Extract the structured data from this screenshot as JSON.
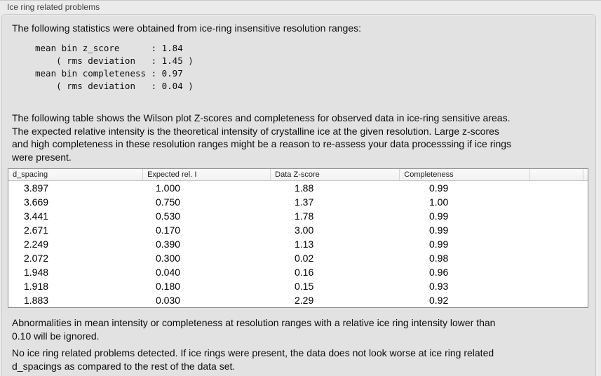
{
  "panel": {
    "title": "Ice ring related problems"
  },
  "intro": {
    "text": "The following statistics were obtained from ice-ring insensitive resolution ranges:",
    "stats_block": "mean bin z_score      : 1.84\n    ( rms deviation   : 1.45 )\nmean bin completeness : 0.97\n    ( rms deviation   : 0.04 )"
  },
  "table_description": "The following table shows the Wilson plot Z-scores and completeness for observed data in ice-ring sensitive areas.\nThe expected relative intensity is the theoretical intensity of crystalline ice at the given resolution. Large z-scores\nand high completeness in these resolution ranges might be a reason to re-assess your data processsing if ice rings\nwere present.",
  "table": {
    "columns": [
      "d_spacing",
      "Expected rel. I",
      "Data Z-score",
      "Completeness"
    ],
    "rows": [
      [
        "3.897",
        "1.000",
        "1.88",
        "0.99"
      ],
      [
        "3.669",
        "0.750",
        "1.37",
        "1.00"
      ],
      [
        "3.441",
        "0.530",
        "1.78",
        "0.99"
      ],
      [
        "2.671",
        "0.170",
        "3.00",
        "0.99"
      ],
      [
        "2.249",
        "0.390",
        "1.13",
        "0.99"
      ],
      [
        "2.072",
        "0.300",
        "0.02",
        "0.98"
      ],
      [
        "1.948",
        "0.040",
        "0.16",
        "0.96"
      ],
      [
        "1.918",
        "0.180",
        "0.15",
        "0.93"
      ],
      [
        "1.883",
        "0.030",
        "2.29",
        "0.92"
      ]
    ]
  },
  "notes": {
    "ignore_note": "Abnormalities in mean intensity or completeness at resolution ranges with a relative ice ring intensity lower than\n0.10 will be ignored.",
    "conclusion": "No ice ring related problems detected. If ice rings were present, the data does not look worse at ice ring related\nd_spacings as compared to the rest of the data set."
  },
  "colors": {
    "window_background": "#ebebeb",
    "groupbox_background": "#e2e2e2",
    "groupbox_border": "#c9c9c9",
    "table_border": "#8a8a8a",
    "table_header_background": "#f6f6f6",
    "text": "#0d0d0d"
  }
}
